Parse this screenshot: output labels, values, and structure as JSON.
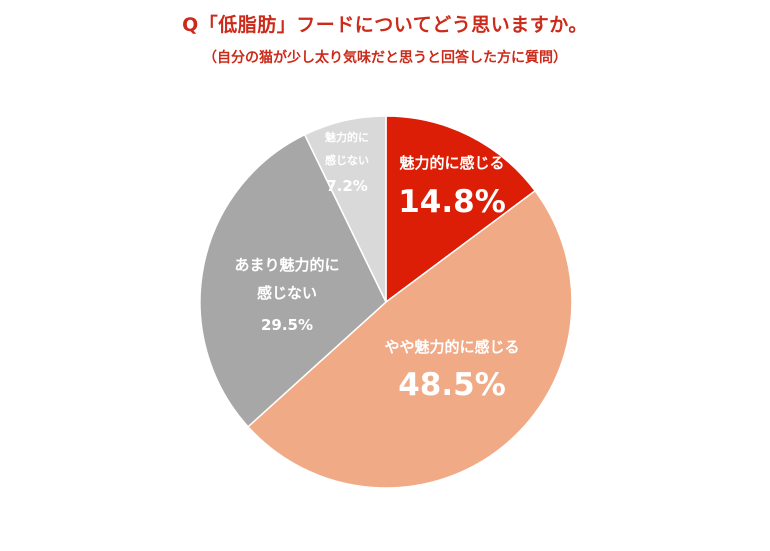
{
  "chart_data": {
    "type": "pie",
    "title": "Q「低脂肪」フードについてどう思いますか。",
    "subtitle": "（自分の猫が少し太り気味だと思うと回答した方に質問）",
    "start_angle_deg": 0,
    "direction": "clockwise",
    "slices": [
      {
        "label_lines": [
          "魅力的に感じる"
        ],
        "value": 14.8,
        "value_label": "14.8%",
        "color": "#db1e05"
      },
      {
        "label_lines": [
          "やや魅力的に感じる"
        ],
        "value": 48.5,
        "value_label": "48.5%",
        "color": "#f0aa86"
      },
      {
        "label_lines": [
          "あまり魅力的に",
          "感じない"
        ],
        "value": 29.5,
        "value_label": "29.5%",
        "color": "#a7a7a7"
      },
      {
        "label_lines": [
          "魅力的に",
          "感じない"
        ],
        "value": 7.2,
        "value_label": "7.2%",
        "color": "#d9d9d9"
      }
    ]
  }
}
